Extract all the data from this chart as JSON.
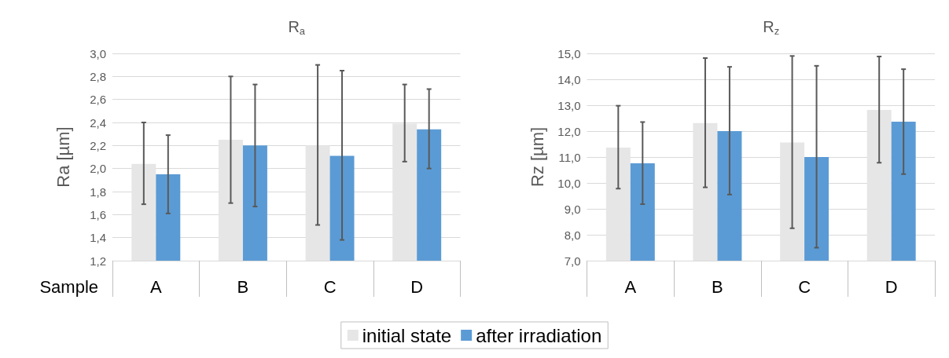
{
  "chart_data": [
    {
      "type": "bar",
      "title": "R$_{a}$",
      "ylabel": "Ra [µm]",
      "xlabel": "Sample",
      "categories": [
        "A",
        "B",
        "C",
        "D"
      ],
      "series": [
        {
          "name": "initial state",
          "color": "#e7e6e6",
          "values": [
            2.04,
            2.25,
            2.2,
            2.39
          ],
          "errors": [
            [
              1.69,
              2.4
            ],
            [
              1.7,
              2.8
            ],
            [
              1.51,
              2.9
            ],
            [
              2.06,
              2.73
            ]
          ]
        },
        {
          "name": "after irradiation",
          "color": "#5b9bd5",
          "values": [
            1.95,
            2.2,
            2.11,
            2.34
          ],
          "errors": [
            [
              1.61,
              2.29
            ],
            [
              1.67,
              2.73
            ],
            [
              1.38,
              2.85
            ],
            [
              2.0,
              2.69
            ]
          ]
        }
      ],
      "ylim": [
        1.2,
        3.0
      ],
      "yticks": [
        {
          "value": 1.2,
          "label": "1,2"
        },
        {
          "value": 1.4,
          "label": "1,4"
        },
        {
          "value": 1.6,
          "label": "1,6"
        },
        {
          "value": 1.8,
          "label": "1,8"
        },
        {
          "value": 2.0,
          "label": "2,0"
        },
        {
          "value": 2.2,
          "label": "2,2"
        },
        {
          "value": 2.4,
          "label": "2,4"
        },
        {
          "value": 2.6,
          "label": "2,6"
        },
        {
          "value": 2.8,
          "label": "2,8"
        },
        {
          "value": 3.0,
          "label": "3,0"
        }
      ],
      "grid": "y",
      "legend": "bottom"
    },
    {
      "type": "bar",
      "title": "R$_{z}$",
      "ylabel": "Rz [µm]",
      "categories": [
        "A",
        "B",
        "C",
        "D"
      ],
      "series": [
        {
          "name": "initial state",
          "color": "#e7e6e6",
          "values": [
            11.36,
            12.31,
            11.56,
            12.82
          ],
          "errors": [
            [
              9.78,
              12.98
            ],
            [
              9.83,
              14.82
            ],
            [
              8.25,
              14.9
            ],
            [
              10.78,
              14.88
            ]
          ]
        },
        {
          "name": "after irradiation",
          "color": "#5b9bd5",
          "values": [
            10.76,
            12.0,
            11.0,
            12.36
          ],
          "errors": [
            [
              9.18,
              12.35
            ],
            [
              9.55,
              14.48
            ],
            [
              7.5,
              14.52
            ],
            [
              10.34,
              14.39
            ]
          ]
        }
      ],
      "ylim": [
        7.0,
        15.0
      ],
      "yticks": [
        {
          "value": 7,
          "label": "7,0"
        },
        {
          "value": 8,
          "label": "8,0"
        },
        {
          "value": 9,
          "label": "9,0"
        },
        {
          "value": 10,
          "label": "10,0"
        },
        {
          "value": 11,
          "label": "11,0"
        },
        {
          "value": 12,
          "label": "12,0"
        },
        {
          "value": 13,
          "label": "13,0"
        },
        {
          "value": 14,
          "label": "14,0"
        },
        {
          "value": 15,
          "label": "15,0"
        }
      ],
      "grid": "y"
    }
  ]
}
